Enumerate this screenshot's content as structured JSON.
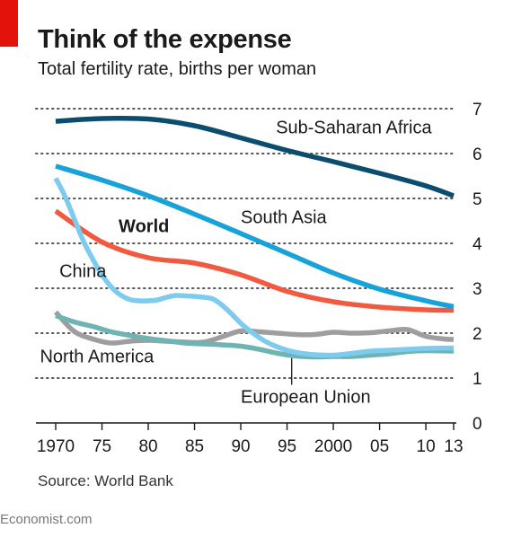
{
  "header": {
    "title": "Think of the expense",
    "subtitle": "Total fertility rate, births per woman"
  },
  "footer": {
    "source": "Source: World Bank",
    "credit": "Economist.com"
  },
  "colors": {
    "accent": "#e3120b",
    "grid": "#555555",
    "axis": "#1a1a1a"
  },
  "chart_data": {
    "type": "line",
    "title": "Think of the expense",
    "subtitle": "Total fertility rate, births per woman",
    "xlabel": "",
    "ylabel": "",
    "xlim": [
      1970,
      2013
    ],
    "ylim": [
      0,
      7
    ],
    "y_axis_position": "right",
    "grid": "dotted horizontal",
    "x_ticks": [
      {
        "value": 1970,
        "label": "1970"
      },
      {
        "value": 1975,
        "label": "75"
      },
      {
        "value": 1980,
        "label": "80"
      },
      {
        "value": 1985,
        "label": "85"
      },
      {
        "value": 1990,
        "label": "90"
      },
      {
        "value": 1995,
        "label": "95"
      },
      {
        "value": 2000,
        "label": "2000"
      },
      {
        "value": 2005,
        "label": "05"
      },
      {
        "value": 2010,
        "label": "10"
      },
      {
        "value": 2013,
        "label": "13"
      }
    ],
    "y_ticks": [
      0,
      1,
      2,
      3,
      4,
      5,
      6,
      7
    ],
    "series": [
      {
        "name": "Sub-Saharan Africa",
        "color": "#0b4d6e",
        "x": [
          1970,
          1975,
          1980,
          1985,
          1990,
          1995,
          2000,
          2005,
          2010,
          2013
        ],
        "y": [
          6.72,
          6.78,
          6.77,
          6.62,
          6.35,
          6.07,
          5.82,
          5.56,
          5.28,
          5.06
        ]
      },
      {
        "name": "South Asia",
        "color": "#17a2d9",
        "x": [
          1970,
          1975,
          1980,
          1985,
          1990,
          1995,
          2000,
          2005,
          2010,
          2013
        ],
        "y": [
          5.72,
          5.41,
          5.06,
          4.65,
          4.22,
          3.78,
          3.34,
          2.98,
          2.72,
          2.59
        ]
      },
      {
        "name": "World",
        "color": "#f15a40",
        "x": [
          1970,
          1975,
          1980,
          1985,
          1990,
          1995,
          2000,
          2005,
          2010,
          2013
        ],
        "y": [
          4.72,
          4.03,
          3.68,
          3.56,
          3.3,
          2.93,
          2.7,
          2.58,
          2.52,
          2.51
        ]
      },
      {
        "name": "China",
        "color": "#7ecbf0",
        "x": [
          1970,
          1971,
          1972,
          1973,
          1974,
          1975,
          1976,
          1977,
          1978,
          1979,
          1980,
          1981,
          1982,
          1983,
          1984,
          1985,
          1986,
          1987,
          1988,
          1989,
          1990,
          1991,
          1992,
          1993,
          1994,
          1995,
          1996,
          1997,
          1998,
          2000,
          2002,
          2004,
          2006,
          2008,
          2010,
          2013
        ],
        "y": [
          5.45,
          5.05,
          4.55,
          4.05,
          3.65,
          3.3,
          3.03,
          2.85,
          2.75,
          2.72,
          2.72,
          2.74,
          2.8,
          2.84,
          2.83,
          2.82,
          2.8,
          2.76,
          2.62,
          2.43,
          2.22,
          2.05,
          1.9,
          1.78,
          1.69,
          1.62,
          1.57,
          1.54,
          1.52,
          1.51,
          1.55,
          1.6,
          1.62,
          1.64,
          1.66,
          1.67
        ]
      },
      {
        "name": "North America",
        "color": "#9e9e9e",
        "x": [
          1970,
          1972,
          1974,
          1976,
          1978,
          1980,
          1982,
          1984,
          1986,
          1988,
          1990,
          1992,
          1994,
          1996,
          1998,
          2000,
          2002,
          2004,
          2006,
          2008,
          2010,
          2012,
          2013
        ],
        "y": [
          2.47,
          2.04,
          1.87,
          1.78,
          1.82,
          1.84,
          1.82,
          1.8,
          1.8,
          1.92,
          2.05,
          2.03,
          2.0,
          1.97,
          1.97,
          2.02,
          2.0,
          2.01,
          2.05,
          2.08,
          1.93,
          1.87,
          1.86
        ]
      },
      {
        "name": "European Union",
        "color": "#6fb3b3",
        "x": [
          1970,
          1972,
          1974,
          1976,
          1978,
          1980,
          1982,
          1984,
          1986,
          1988,
          1990,
          1992,
          1994,
          1996,
          1998,
          2000,
          2002,
          2004,
          2006,
          2008,
          2010,
          2013
        ],
        "y": [
          2.39,
          2.25,
          2.15,
          2.03,
          1.95,
          1.88,
          1.83,
          1.78,
          1.76,
          1.74,
          1.71,
          1.64,
          1.55,
          1.49,
          1.47,
          1.48,
          1.48,
          1.51,
          1.54,
          1.59,
          1.61,
          1.6
        ]
      }
    ],
    "labels": [
      {
        "text": "Sub-Saharan Africa",
        "series": "Sub-Saharan Africa",
        "x": 1993.8,
        "y": 6.45,
        "weight": "normal"
      },
      {
        "text": "South Asia",
        "series": "South Asia",
        "x": 1990,
        "y": 4.45,
        "weight": "normal"
      },
      {
        "text": "World",
        "series": "World",
        "x": 1976.8,
        "y": 4.25,
        "weight": "bold"
      },
      {
        "text": "China",
        "series": "China",
        "x": 1970.4,
        "y": 3.25,
        "weight": "normal"
      },
      {
        "text": "North America",
        "series": "North America",
        "x": 1968.3,
        "y": 1.35,
        "weight": "normal"
      },
      {
        "text": "European Union",
        "series": "European Union",
        "x": 1990,
        "y": 0.45,
        "weight": "normal",
        "pointer_x": 1995.5
      }
    ]
  }
}
